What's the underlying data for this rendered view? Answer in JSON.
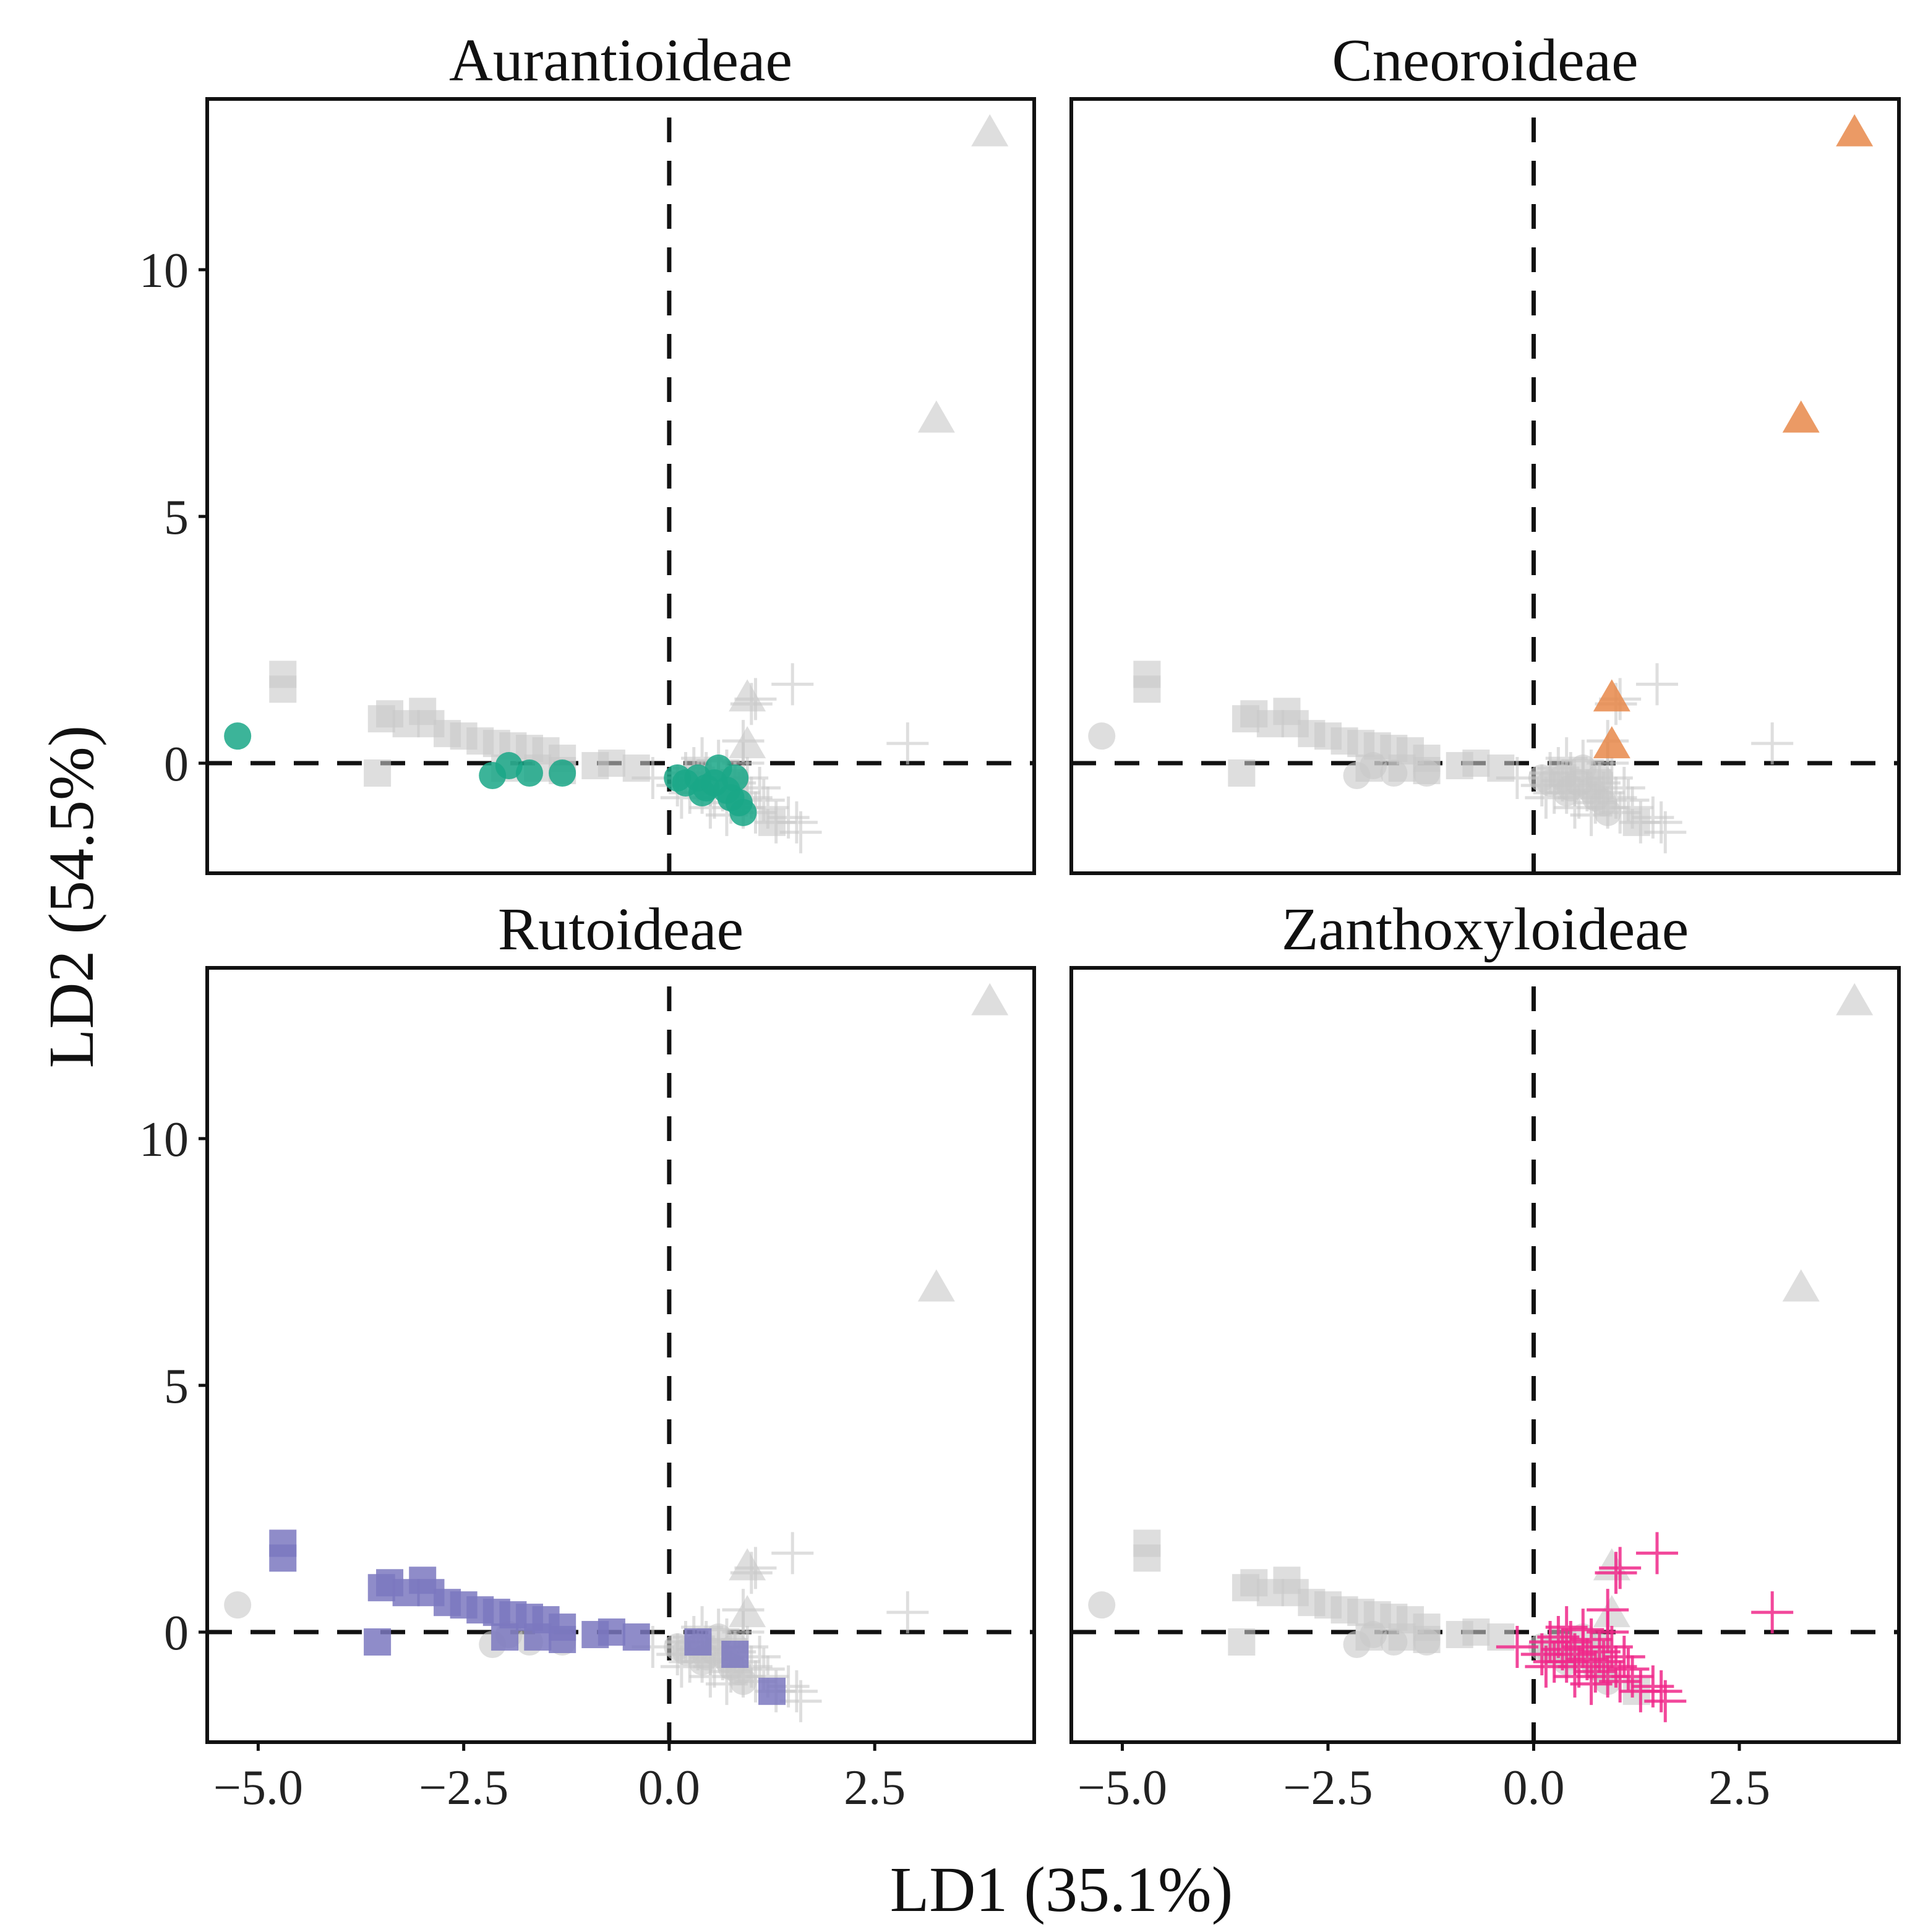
{
  "chart_data": {
    "type": "scatter",
    "layout": "2x2 facets",
    "xlabel": "LD1 (35.1%)",
    "ylabel": "LD2 (54.5%)",
    "xlim": [
      -5.62,
      4.44
    ],
    "ylim": [
      -2.23,
      13.46
    ],
    "xticks": [
      -5.0,
      -2.5,
      0.0,
      2.5
    ],
    "xtick_labels": [
      "−5.0",
      "−2.5",
      "0.0",
      "2.5"
    ],
    "yticks": [
      0,
      5,
      10
    ],
    "ytick_labels": [
      "0",
      "5",
      "10"
    ],
    "reference_lines": {
      "x": 0,
      "y": 0,
      "style": "dashed"
    },
    "background_color": "#c8c8c8",
    "panels": [
      "Aurantioideae",
      "Cneoroideae",
      "Rutoideae",
      "Zanthoxyloideae"
    ],
    "series": [
      {
        "name": "Aurantioideae",
        "marker": "circle",
        "color": "#1aa787",
        "points": [
          [
            -5.25,
            0.55
          ],
          [
            -2.15,
            -0.25
          ],
          [
            -1.95,
            -0.05
          ],
          [
            -1.7,
            -0.2
          ],
          [
            -1.3,
            -0.2
          ],
          [
            0.1,
            -0.3
          ],
          [
            0.2,
            -0.4
          ],
          [
            0.35,
            -0.3
          ],
          [
            0.4,
            -0.6
          ],
          [
            0.45,
            -0.5
          ],
          [
            0.55,
            -0.4
          ],
          [
            0.6,
            -0.1
          ],
          [
            0.7,
            -0.55
          ],
          [
            0.75,
            -0.7
          ],
          [
            0.8,
            -0.3
          ],
          [
            0.85,
            -0.8
          ],
          [
            0.9,
            -1.0
          ]
        ]
      },
      {
        "name": "Cneoroideae",
        "marker": "triangle",
        "color": "#e8884a",
        "points": [
          [
            3.9,
            12.8
          ],
          [
            3.25,
            7.0
          ],
          [
            0.95,
            1.35
          ],
          [
            0.95,
            0.4
          ]
        ]
      },
      {
        "name": "Rutoideae",
        "marker": "square",
        "color": "#7b78bf",
        "points": [
          [
            -4.7,
            1.5
          ],
          [
            -4.7,
            1.8
          ],
          [
            -3.55,
            -0.2
          ],
          [
            -3.5,
            0.9
          ],
          [
            -3.4,
            1.0
          ],
          [
            -3.2,
            0.8
          ],
          [
            -3.0,
            1.05
          ],
          [
            -2.9,
            0.8
          ],
          [
            -2.7,
            0.6
          ],
          [
            -2.5,
            0.55
          ],
          [
            -2.3,
            0.45
          ],
          [
            -2.1,
            0.4
          ],
          [
            -1.9,
            0.35
          ],
          [
            -1.7,
            0.3
          ],
          [
            -1.5,
            0.25
          ],
          [
            -1.3,
            0.1
          ],
          [
            -1.6,
            -0.1
          ],
          [
            -2.0,
            -0.1
          ],
          [
            -1.3,
            -0.15
          ],
          [
            -0.9,
            -0.05
          ],
          [
            -0.7,
            0.0
          ],
          [
            -0.4,
            -0.1
          ],
          [
            0.35,
            -0.2
          ],
          [
            0.8,
            -0.45
          ],
          [
            1.25,
            -1.2
          ]
        ]
      },
      {
        "name": "Zanthoxyloideae",
        "marker": "cross",
        "color": "#f0288a",
        "points": [
          [
            1.05,
            1.3
          ],
          [
            1.5,
            1.6
          ],
          [
            1.0,
            1.2
          ],
          [
            2.9,
            0.4
          ],
          [
            0.9,
            0.45
          ],
          [
            0.9,
            0.0
          ],
          [
            -0.2,
            -0.3
          ],
          [
            0.2,
            -0.2
          ],
          [
            0.1,
            -0.45
          ],
          [
            0.3,
            -0.1
          ],
          [
            0.35,
            -0.35
          ],
          [
            0.4,
            -0.6
          ],
          [
            0.45,
            -0.2
          ],
          [
            0.5,
            -0.45
          ],
          [
            0.55,
            -0.7
          ],
          [
            0.6,
            -0.3
          ],
          [
            0.65,
            -0.55
          ],
          [
            0.7,
            -0.15
          ],
          [
            0.75,
            -0.8
          ],
          [
            0.8,
            -0.4
          ],
          [
            0.85,
            -0.6
          ],
          [
            0.9,
            -0.9
          ],
          [
            0.95,
            -0.3
          ],
          [
            1.0,
            -0.7
          ],
          [
            1.05,
            -1.0
          ],
          [
            1.1,
            -0.5
          ],
          [
            1.2,
            -0.9
          ],
          [
            1.3,
            -1.2
          ],
          [
            1.45,
            -1.1
          ],
          [
            1.6,
            -1.4
          ],
          [
            1.55,
            -1.2
          ],
          [
            0.25,
            -0.6
          ],
          [
            0.5,
            -0.9
          ],
          [
            0.7,
            -1.05
          ],
          [
            0.15,
            -0.7
          ],
          [
            1.15,
            -0.75
          ],
          [
            0.6,
            0.05
          ],
          [
            0.4,
            0.1
          ]
        ]
      }
    ]
  }
}
